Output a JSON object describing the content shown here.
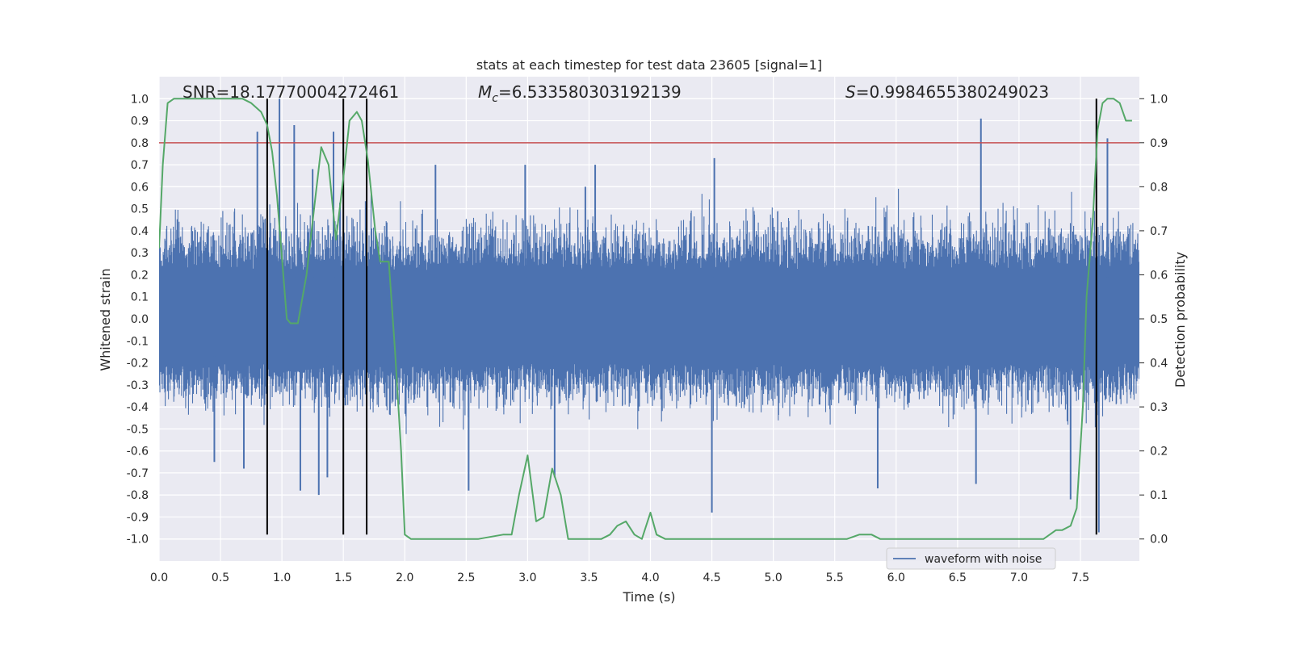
{
  "chart_data": {
    "type": "line",
    "title": "stats at each timestep for test data 23605 [signal=1]",
    "xlabel": "Time (s)",
    "ylabel_left": "Whitened strain",
    "ylabel_right": "Detection probability",
    "xlim": [
      0.0,
      7.98
    ],
    "ylim_left": [
      -1.1,
      1.1
    ],
    "ylim_right": [
      -0.05,
      1.05
    ],
    "x_ticks": [
      "0.0",
      "0.5",
      "1.0",
      "1.5",
      "2.0",
      "2.5",
      "3.0",
      "3.5",
      "4.0",
      "4.5",
      "5.0",
      "5.5",
      "6.0",
      "6.5",
      "7.0",
      "7.5"
    ],
    "y_left_ticks": [
      "1.0",
      "0.9",
      "0.8",
      "0.7",
      "0.6",
      "0.5",
      "0.4",
      "0.3",
      "0.2",
      "0.1",
      "0.0",
      "-0.1",
      "-0.2",
      "-0.3",
      "-0.4",
      "-0.5",
      "-0.6",
      "-0.7",
      "-0.8",
      "-0.9",
      "-1.0"
    ],
    "y_right_ticks": [
      "1.0",
      "0.9",
      "0.8",
      "0.7",
      "0.6",
      "0.5",
      "0.4",
      "0.3",
      "0.2",
      "0.1",
      "0.0"
    ],
    "grid": true,
    "legend_position": "lower-right",
    "annotations": {
      "snr": "SNR=18.17770004272461",
      "mc_symbol": "M",
      "mc_sub": "c",
      "mc_value": "=6.533580303192139",
      "s_symbol": "S",
      "s_value": "=0.9984655380249023"
    },
    "series": [
      {
        "name": "waveform with noise",
        "axis": "left",
        "color": "#4c72b0",
        "style": "noise",
        "typical_range": [
          -0.4,
          0.45
        ],
        "spikes": [
          [
            0.8,
            0.85
          ],
          [
            0.98,
            1.0
          ],
          [
            1.1,
            0.88
          ],
          [
            1.25,
            0.68
          ],
          [
            1.42,
            0.85
          ],
          [
            2.25,
            0.7
          ],
          [
            2.98,
            0.7
          ],
          [
            3.47,
            0.6
          ],
          [
            3.55,
            0.7
          ],
          [
            4.52,
            0.73
          ],
          [
            6.69,
            0.91
          ],
          [
            7.72,
            0.82
          ],
          [
            0.45,
            -0.65
          ],
          [
            0.69,
            -0.68
          ],
          [
            1.15,
            -0.78
          ],
          [
            1.3,
            -0.8
          ],
          [
            1.37,
            -0.72
          ],
          [
            2.52,
            -0.78
          ],
          [
            3.22,
            -0.72
          ],
          [
            4.5,
            -0.88
          ],
          [
            5.85,
            -0.77
          ],
          [
            6.65,
            -0.75
          ],
          [
            7.42,
            -0.82
          ],
          [
            7.65,
            -0.97
          ]
        ]
      },
      {
        "name": "",
        "axis": "right",
        "color": "#55a868",
        "style": "line",
        "x": [
          0.0,
          0.03,
          0.07,
          0.12,
          0.2,
          0.3,
          0.4,
          0.5,
          0.6,
          0.68,
          0.75,
          0.83,
          0.88,
          0.92,
          0.96,
          1.0,
          1.04,
          1.07,
          1.13,
          1.2,
          1.27,
          1.32,
          1.38,
          1.44,
          1.5,
          1.55,
          1.61,
          1.65,
          1.7,
          1.76,
          1.8,
          1.87,
          1.92,
          1.97,
          2.0,
          2.05,
          2.2,
          2.4,
          2.6,
          2.8,
          2.87,
          2.93,
          3.0,
          3.07,
          3.13,
          3.2,
          3.27,
          3.33,
          3.4,
          3.5,
          3.6,
          3.67,
          3.73,
          3.8,
          3.87,
          3.93,
          4.0,
          4.05,
          4.12,
          4.2,
          4.3,
          4.4,
          4.5,
          4.6,
          4.7,
          4.8,
          4.9,
          5.0,
          5.2,
          5.4,
          5.6,
          5.7,
          5.75,
          5.8,
          5.87,
          5.93,
          6.0,
          6.1,
          6.3,
          6.5,
          6.7,
          6.9,
          7.1,
          7.2,
          7.25,
          7.3,
          7.35,
          7.42,
          7.47,
          7.52,
          7.55,
          7.6,
          7.64,
          7.68,
          7.72,
          7.77,
          7.82,
          7.87,
          7.92
        ],
        "values": [
          0.66,
          0.85,
          0.99,
          1.0,
          1.0,
          1.0,
          1.0,
          1.0,
          1.0,
          1.0,
          0.99,
          0.97,
          0.94,
          0.88,
          0.78,
          0.64,
          0.5,
          0.49,
          0.49,
          0.6,
          0.77,
          0.89,
          0.85,
          0.68,
          0.82,
          0.95,
          0.97,
          0.95,
          0.86,
          0.7,
          0.63,
          0.63,
          0.43,
          0.2,
          0.01,
          0.0,
          0.0,
          0.0,
          0.0,
          0.01,
          0.01,
          0.1,
          0.19,
          0.04,
          0.05,
          0.16,
          0.1,
          0.0,
          0.0,
          0.0,
          0.0,
          0.01,
          0.03,
          0.04,
          0.01,
          0.0,
          0.06,
          0.01,
          0.0,
          0.0,
          0.0,
          0.0,
          0.0,
          0.0,
          0.0,
          0.0,
          0.0,
          0.0,
          0.0,
          0.0,
          0.0,
          0.01,
          0.01,
          0.01,
          0.0,
          0.0,
          0.0,
          0.0,
          0.0,
          0.0,
          0.0,
          0.0,
          0.0,
          0.0,
          0.01,
          0.02,
          0.02,
          0.03,
          0.07,
          0.3,
          0.55,
          0.72,
          0.93,
          0.99,
          1.0,
          1.0,
          0.99,
          0.95,
          0.95
        ]
      }
    ],
    "threshold_line": {
      "axis": "left",
      "y": 0.8,
      "color": "#c44e52"
    },
    "vertical_lines": {
      "color": "#000000",
      "x": [
        0.88,
        1.5,
        1.69,
        7.63
      ],
      "y_range": [
        -0.98,
        1.0
      ]
    },
    "legend": {
      "entries": [
        "waveform with noise"
      ]
    }
  }
}
